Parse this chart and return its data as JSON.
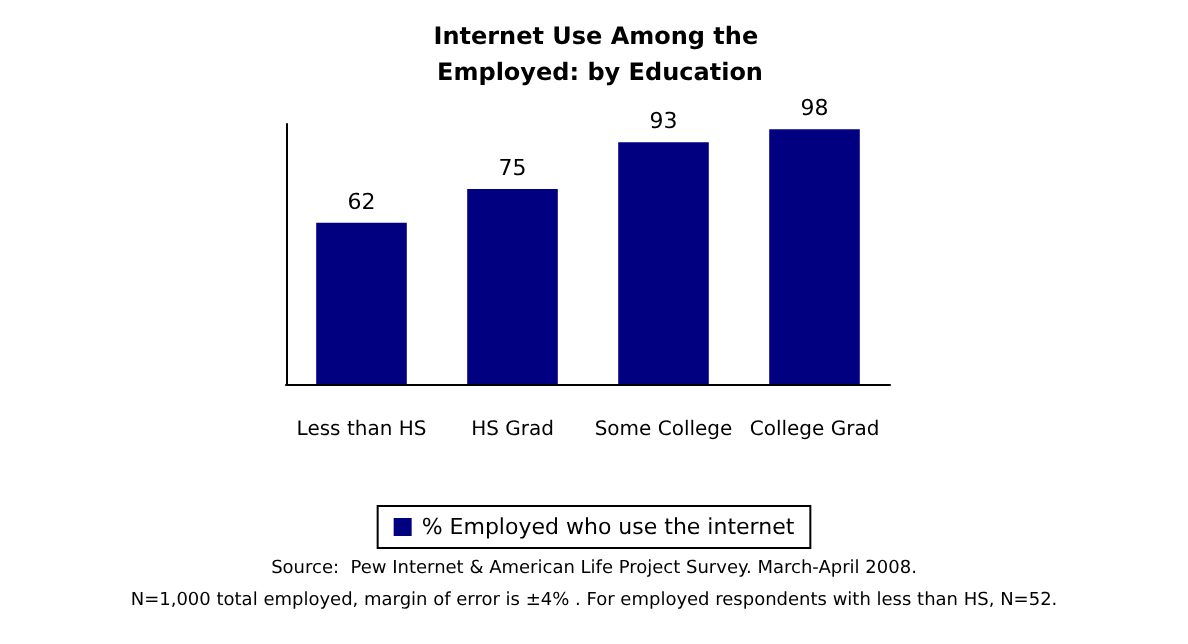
{
  "chart_data": {
    "type": "bar",
    "title": "Internet Use Among the Employed: by Education",
    "categories": [
      "Less than HS",
      "HS Grad",
      "Some College",
      "College Grad"
    ],
    "series": [
      {
        "name": "% Employed who use the internet",
        "color": "#000080",
        "values": [
          62,
          75,
          93,
          98
        ]
      }
    ],
    "data_labels": true,
    "legend": "bottom",
    "grid": false,
    "tick_labels": "x",
    "annotations": [
      "Source:  Pew Internet & American Life Project Survey. March-April 2008.",
      "N=1,000 total employed, margin of error is ±4% . For employed respondents with less than HS, N=52."
    ]
  }
}
